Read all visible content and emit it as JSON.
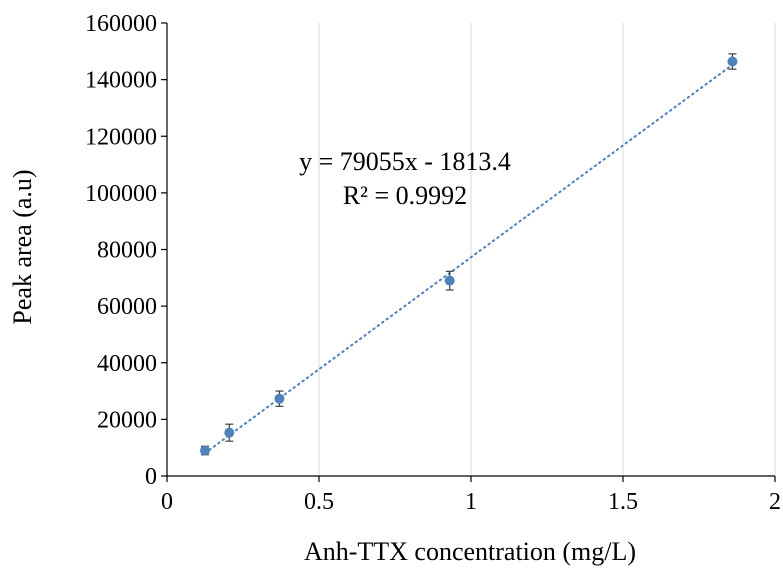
{
  "chart_data": {
    "type": "scatter",
    "title": "",
    "xlabel": "Anh-TTX concentration (mg/L)",
    "ylabel": "Peak area (a.u)",
    "xlim": [
      0,
      2
    ],
    "ylim": [
      0,
      160000
    ],
    "x_ticks": [
      "0",
      "0.5",
      "1",
      "1.5",
      "2"
    ],
    "y_ticks": [
      "0",
      "20000",
      "40000",
      "60000",
      "80000",
      "100000",
      "120000",
      "140000",
      "160000"
    ],
    "grid": "vertical",
    "points": [
      {
        "x": 0.125,
        "y": 9000,
        "err": 1500
      },
      {
        "x": 0.205,
        "y": 15300,
        "err": 3000
      },
      {
        "x": 0.37,
        "y": 27300,
        "err": 2700
      },
      {
        "x": 0.93,
        "y": 69000,
        "err": 3300
      },
      {
        "x": 1.86,
        "y": 146400,
        "err": 2700
      }
    ],
    "trendline": {
      "type": "linear",
      "slope": 79055,
      "intercept": -1813.4,
      "x_range": [
        0.125,
        1.86
      ],
      "equation": "y = 79055x - 1813.4",
      "r_squared": "R² = 0.9992"
    },
    "colors": {
      "marker": "#4f81bd",
      "trendline": "#4f81bd",
      "error_bar": "#404040",
      "grid": "#d9d9d9",
      "axis": "#000000"
    }
  }
}
